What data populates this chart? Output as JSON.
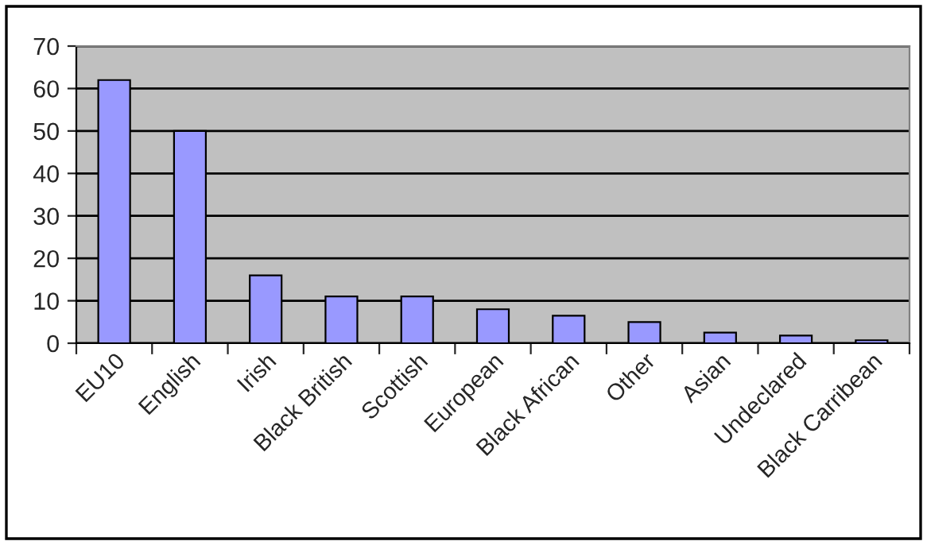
{
  "chart_data": {
    "type": "bar",
    "categories": [
      "EU10",
      "English",
      "Irish",
      "Black British",
      "Scottish",
      "European",
      "Black African",
      "Other",
      "Asian",
      "Undeclared",
      "Black Carribean"
    ],
    "values": [
      62,
      50,
      16,
      11,
      11,
      8,
      6.5,
      5,
      2.5,
      1.8,
      0.7
    ],
    "color": "#9999ff",
    "ylim": [
      0,
      70
    ],
    "yticks": [
      0,
      10,
      20,
      30,
      40,
      50,
      60,
      70
    ],
    "grid": "y",
    "legend": false
  }
}
